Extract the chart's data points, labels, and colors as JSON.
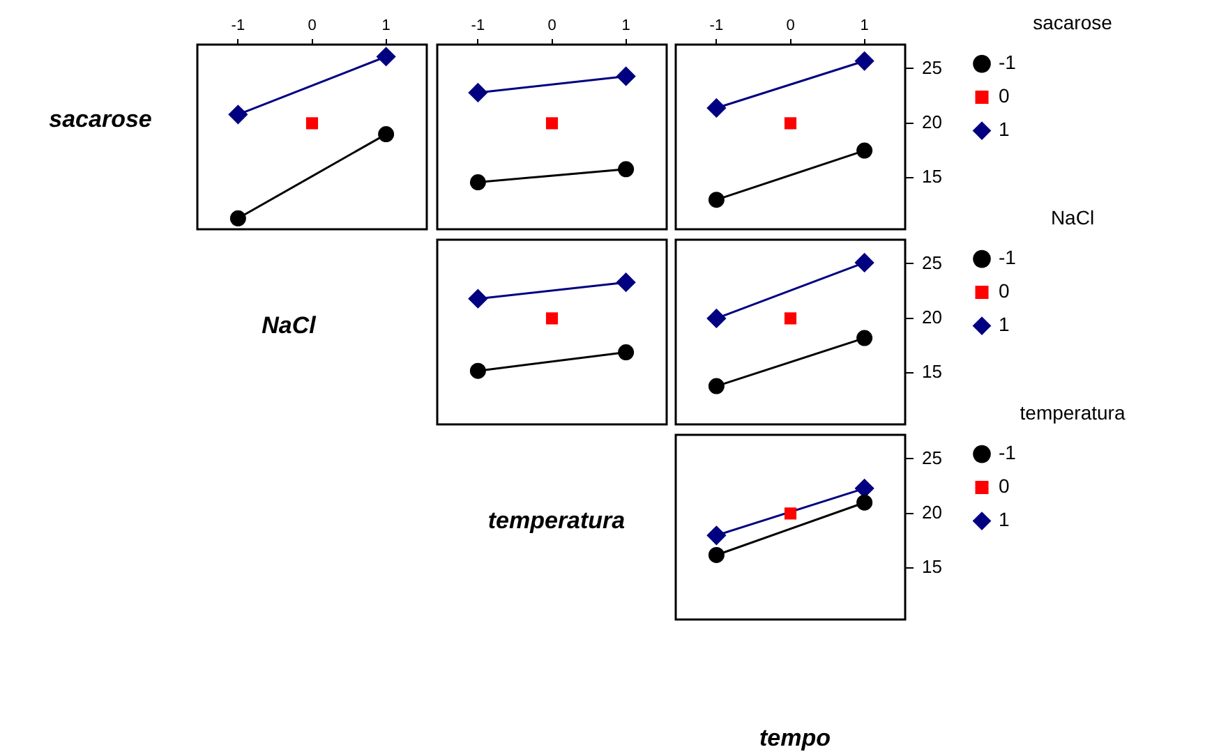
{
  "chart_data": [
    {
      "type": "line",
      "ylabel": "sacarose",
      "xlabel": "NaCl",
      "x": [
        -1,
        0,
        1
      ],
      "xlim": [
        -1.55,
        1.55
      ],
      "xticks": [
        -1,
        0,
        1
      ],
      "ylim": [
        10.3,
        27.2
      ],
      "yticks": [
        15,
        20,
        25
      ],
      "tick_labels": "x",
      "series": [
        {
          "name": "-1",
          "color": "#000000",
          "marker": "circle",
          "values": [
            11.3,
            null,
            19.0
          ]
        },
        {
          "name": "0",
          "color": "#ff0000",
          "marker": "square",
          "values": [
            null,
            20,
            null
          ]
        },
        {
          "name": "1",
          "color": "#000080",
          "marker": "diamond",
          "values": [
            20.8,
            null,
            26.1
          ]
        }
      ]
    },
    {
      "type": "line",
      "xlabel": "temperatura",
      "x": [
        -1,
        0,
        1
      ],
      "xlim": [
        -1.55,
        1.55
      ],
      "xticks": [
        -1,
        0,
        1
      ],
      "ylim": [
        10.3,
        27.2
      ],
      "yticks": [
        15,
        20,
        25
      ],
      "tick_labels": "x",
      "series": [
        {
          "name": "-1",
          "color": "#000000",
          "marker": "circle",
          "values": [
            14.6,
            null,
            15.8
          ]
        },
        {
          "name": "0",
          "color": "#ff0000",
          "marker": "square",
          "values": [
            null,
            20,
            null
          ]
        },
        {
          "name": "1",
          "color": "#000080",
          "marker": "diamond",
          "values": [
            22.8,
            null,
            24.3
          ]
        }
      ]
    },
    {
      "type": "line",
      "xlabel": "tempo",
      "legend": "right",
      "legend_title": "sacarose",
      "x": [
        -1,
        0,
        1
      ],
      "xlim": [
        -1.55,
        1.55
      ],
      "xticks": [
        -1,
        0,
        1
      ],
      "ylim": [
        10.3,
        27.2
      ],
      "yticks": [
        15,
        20,
        25
      ],
      "series": [
        {
          "name": "-1",
          "color": "#000000",
          "marker": "circle",
          "values": [
            13.0,
            null,
            17.5
          ]
        },
        {
          "name": "0",
          "color": "#ff0000",
          "marker": "square",
          "values": [
            null,
            20,
            null
          ]
        },
        {
          "name": "1",
          "color": "#000080",
          "marker": "diamond",
          "values": [
            21.4,
            null,
            25.7
          ]
        }
      ]
    },
    {
      "type": "line",
      "x": [
        -1,
        0,
        1
      ],
      "xlim": [
        -1.55,
        1.55
      ],
      "xticks": [
        -1,
        0,
        1
      ],
      "ylim": [
        10.3,
        27.2
      ],
      "yticks": [
        15,
        20,
        25
      ],
      "tick_labels": false,
      "series": [
        {
          "name": "-1",
          "color": "#000000",
          "marker": "circle",
          "values": [
            15.2,
            null,
            16.9
          ]
        },
        {
          "name": "0",
          "color": "#ff0000",
          "marker": "square",
          "values": [
            null,
            20,
            null
          ]
        },
        {
          "name": "1",
          "color": "#000080",
          "marker": "diamond",
          "values": [
            21.8,
            null,
            23.3
          ]
        }
      ]
    },
    {
      "type": "line",
      "legend": "right",
      "legend_title": "NaCl",
      "x": [
        -1,
        0,
        1
      ],
      "xlim": [
        -1.55,
        1.55
      ],
      "xticks": [
        -1,
        0,
        1
      ],
      "ylim": [
        10.3,
        27.2
      ],
      "yticks": [
        15,
        20,
        25
      ],
      "tick_labels": "y",
      "series": [
        {
          "name": "-1",
          "color": "#000000",
          "marker": "circle",
          "values": [
            13.8,
            null,
            18.2
          ]
        },
        {
          "name": "0",
          "color": "#ff0000",
          "marker": "square",
          "values": [
            null,
            20,
            null
          ]
        },
        {
          "name": "1",
          "color": "#000080",
          "marker": "diamond",
          "values": [
            20.0,
            null,
            25.1
          ]
        }
      ]
    },
    {
      "type": "line",
      "legend": "right",
      "legend_title": "temperatura",
      "x": [
        -1,
        0,
        1
      ],
      "xlim": [
        -1.55,
        1.55
      ],
      "xticks": [
        -1,
        0,
        1
      ],
      "ylim": [
        10.3,
        27.2
      ],
      "yticks": [
        15,
        20,
        25
      ],
      "tick_labels": "y",
      "series": [
        {
          "name": "-1",
          "color": "#000000",
          "marker": "circle",
          "values": [
            16.2,
            null,
            21.0
          ]
        },
        {
          "name": "0",
          "color": "#ff0000",
          "marker": "square",
          "values": [
            null,
            20,
            null
          ]
        },
        {
          "name": "1",
          "color": "#000080",
          "marker": "diamond",
          "values": [
            18.0,
            null,
            22.3
          ]
        }
      ]
    }
  ]
}
